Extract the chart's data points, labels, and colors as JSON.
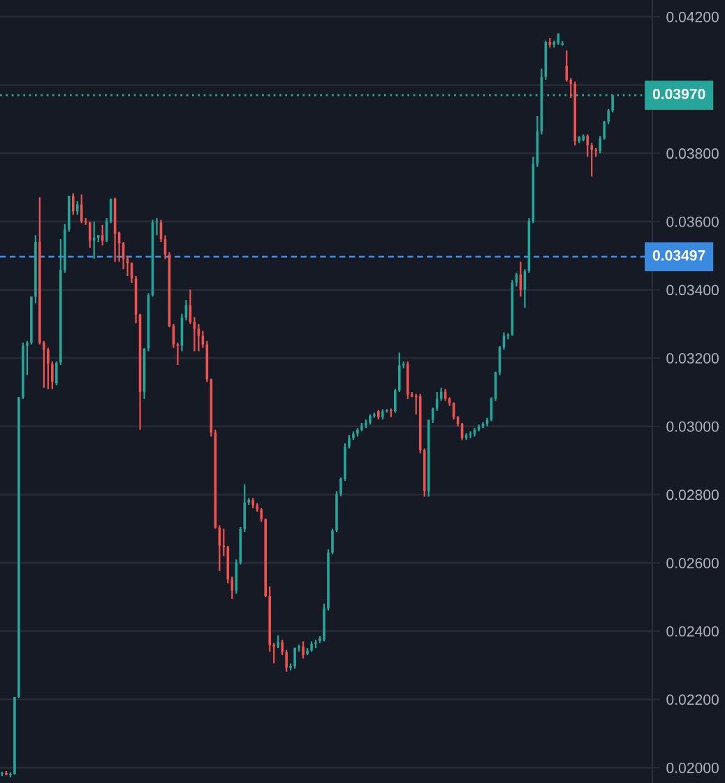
{
  "chart_data": {
    "type": "candlestick",
    "categories": [
      null,
      null,
      null,
      null,
      null,
      null,
      null,
      null,
      null,
      null,
      null,
      null,
      null,
      null,
      null,
      null,
      null,
      null,
      null,
      null,
      null,
      null,
      null,
      null,
      null,
      null,
      null,
      null,
      null,
      null,
      null,
      null,
      null,
      null,
      null,
      null,
      null,
      null,
      null,
      null,
      null,
      null,
      null,
      null,
      null,
      null,
      null,
      null,
      null,
      null,
      null,
      null,
      null,
      null,
      null,
      null,
      null,
      null,
      null,
      null,
      null,
      null,
      null,
      null,
      null,
      null,
      null,
      null,
      null,
      null,
      null,
      null,
      null,
      null,
      null,
      null,
      null,
      null,
      null,
      null,
      null,
      null,
      null,
      null,
      null,
      null,
      null,
      null,
      null,
      null,
      null,
      null,
      null,
      null,
      null,
      null,
      null,
      null,
      null,
      null,
      null,
      null,
      null,
      null,
      null,
      null,
      null,
      null,
      null,
      null,
      null,
      null,
      null,
      null,
      null,
      null,
      null,
      null,
      null,
      null,
      null,
      null,
      null,
      null,
      null,
      null,
      null,
      null,
      null,
      null,
      null,
      null,
      null,
      null,
      null,
      null,
      null,
      null,
      null,
      null,
      null,
      null,
      null,
      null,
      null,
      null,
      null,
      null,
      null,
      null,
      null,
      null,
      null,
      null,
      null,
      null
    ],
    "ohlc": [
      [
        0.01982,
        0.01988,
        0.01975,
        0.01984
      ],
      [
        0.01984,
        0.0199,
        0.01978,
        0.01978
      ],
      [
        0.01978,
        0.01986,
        0.01972,
        0.01982
      ],
      [
        0.01982,
        0.02207,
        0.0198,
        0.02207
      ],
      [
        0.02207,
        0.03085,
        0.02205,
        0.03085
      ],
      [
        0.03085,
        0.03245,
        0.0308,
        0.03236
      ],
      [
        0.03236,
        0.0325,
        0.0315,
        0.03245
      ],
      [
        0.03245,
        0.0338,
        0.0324,
        0.0338
      ],
      [
        0.0338,
        0.0356,
        0.0336,
        0.0354
      ],
      [
        0.0354,
        0.03671,
        0.0324,
        0.03245
      ],
      [
        0.03245,
        0.0325,
        0.03113,
        0.03224
      ],
      [
        0.03224,
        0.0323,
        0.03109,
        0.03183
      ],
      [
        0.03183,
        0.0319,
        0.03109,
        0.0313
      ],
      [
        0.03126,
        0.0319,
        0.0312,
        0.03187
      ],
      [
        0.03187,
        0.03548,
        0.0318,
        0.03458
      ],
      [
        0.03458,
        0.03593,
        0.0345,
        0.03577
      ],
      [
        0.03577,
        0.03675,
        0.0357,
        0.03675
      ],
      [
        0.03675,
        0.03683,
        0.0362,
        0.0363
      ],
      [
        0.0363,
        0.0366,
        0.0362,
        0.0365
      ],
      [
        0.0365,
        0.03679,
        0.03595,
        0.03601
      ],
      [
        0.03601,
        0.0361,
        0.0359,
        0.03597
      ],
      [
        0.03597,
        0.036,
        0.03523,
        0.03544
      ],
      [
        0.03544,
        0.036,
        0.03491,
        0.03552
      ],
      [
        0.03552,
        0.0356,
        0.0354,
        0.0356
      ],
      [
        0.0356,
        0.0359,
        0.0353,
        0.03544
      ],
      [
        0.03544,
        0.0361,
        0.0354,
        0.03601
      ],
      [
        0.03601,
        0.03667,
        0.03595,
        0.03667
      ],
      [
        0.03667,
        0.0367,
        0.03482,
        0.03564
      ],
      [
        0.03568,
        0.0357,
        0.03482,
        0.03536
      ],
      [
        0.03536,
        0.0354,
        0.0346,
        0.03491
      ],
      [
        0.03491,
        0.035,
        0.0344,
        0.03478
      ],
      [
        0.03478,
        0.0348,
        0.0342,
        0.03433
      ],
      [
        0.03433,
        0.0344,
        0.03302,
        0.03327
      ],
      [
        0.03327,
        0.0333,
        0.0299,
        0.03101
      ],
      [
        0.03101,
        0.03228,
        0.0308,
        0.03228
      ],
      [
        0.03228,
        0.0339,
        0.0322,
        0.03384
      ],
      [
        0.03384,
        0.03605,
        0.0338,
        0.03597
      ],
      [
        0.03597,
        0.0361,
        0.0356,
        0.03601
      ],
      [
        0.03597,
        0.03605,
        0.0354,
        0.03548
      ],
      [
        0.03548,
        0.0356,
        0.0349,
        0.03503
      ],
      [
        0.03503,
        0.0351,
        0.0329,
        0.03294
      ],
      [
        0.03294,
        0.033,
        0.0323,
        0.0324
      ],
      [
        0.0324,
        0.03245,
        0.0318,
        0.03236
      ],
      [
        0.03236,
        0.0333,
        0.0322,
        0.03318
      ],
      [
        0.03318,
        0.0337,
        0.0331,
        0.03355
      ],
      [
        0.03355,
        0.034,
        0.033,
        0.03306
      ],
      [
        0.03306,
        0.0332,
        0.0322,
        0.03286
      ],
      [
        0.03286,
        0.033,
        0.0322,
        0.03265
      ],
      [
        0.03265,
        0.0328,
        0.0323,
        0.0324
      ],
      [
        0.0324,
        0.0325,
        0.0313,
        0.03138
      ],
      [
        0.03138,
        0.0314,
        0.0297,
        0.02982
      ],
      [
        0.02982,
        0.0299,
        0.027,
        0.02703
      ],
      [
        0.02703,
        0.0271,
        0.02576,
        0.0265
      ],
      [
        0.0265,
        0.027,
        0.0262,
        0.02646
      ],
      [
        0.02646,
        0.0265,
        0.0254,
        0.02552
      ],
      [
        0.02552,
        0.0256,
        0.02494,
        0.02519
      ],
      [
        0.02519,
        0.0261,
        0.0251,
        0.02601
      ],
      [
        0.02601,
        0.02705,
        0.02595,
        0.02699
      ],
      [
        0.02699,
        0.0283,
        0.0269,
        0.02777
      ],
      [
        0.02777,
        0.0279,
        0.0277,
        0.02785
      ],
      [
        0.02785,
        0.0279,
        0.0276,
        0.02769
      ],
      [
        0.02769,
        0.02775,
        0.0275,
        0.02757
      ],
      [
        0.02757,
        0.0276,
        0.0272,
        0.02728
      ],
      [
        0.02728,
        0.0273,
        0.025,
        0.02502
      ],
      [
        0.02502,
        0.02531,
        0.0234,
        0.02359
      ],
      [
        0.02359,
        0.02365,
        0.02306,
        0.02355
      ],
      [
        0.02355,
        0.02388,
        0.0235,
        0.02367
      ],
      [
        0.02367,
        0.02375,
        0.0233,
        0.02338
      ],
      [
        0.02338,
        0.02345,
        0.02281,
        0.02293
      ],
      [
        0.02293,
        0.02305,
        0.02285,
        0.02297
      ],
      [
        0.02297,
        0.02351,
        0.0229,
        0.02351
      ],
      [
        0.02351,
        0.0236,
        0.0234,
        0.02355
      ],
      [
        0.02355,
        0.0237,
        0.0232,
        0.0233
      ],
      [
        0.02334,
        0.0235,
        0.0233,
        0.02343
      ],
      [
        0.02343,
        0.0237,
        0.0234,
        0.02363
      ],
      [
        0.02363,
        0.02375,
        0.0235,
        0.02367
      ],
      [
        0.02371,
        0.02385,
        0.02365,
        0.02379
      ],
      [
        0.02375,
        0.0248,
        0.0237,
        0.02466
      ],
      [
        0.02466,
        0.0264,
        0.0246,
        0.0263
      ],
      [
        0.0263,
        0.027,
        0.02625,
        0.02695
      ],
      [
        0.02695,
        0.0281,
        0.0269,
        0.02802
      ],
      [
        0.02802,
        0.0285,
        0.02795,
        0.02847
      ],
      [
        0.02847,
        0.0295,
        0.0284,
        0.02941
      ],
      [
        0.02941,
        0.02975,
        0.02935,
        0.02966
      ],
      [
        0.02966,
        0.02985,
        0.0296,
        0.02978
      ],
      [
        0.02978,
        0.02995,
        0.0297,
        0.0299
      ],
      [
        0.0299,
        0.0301,
        0.02985,
        0.03003
      ],
      [
        0.03003,
        0.0302,
        0.02995,
        0.03011
      ],
      [
        0.03011,
        0.03035,
        0.03005,
        0.03031
      ],
      [
        0.03031,
        0.0304,
        0.03025,
        0.03035
      ],
      [
        0.03044,
        0.03048,
        0.0302,
        0.03027
      ],
      [
        0.03027,
        0.0305,
        0.0302,
        0.03044
      ],
      [
        0.03044,
        0.0305,
        0.0304,
        0.03048
      ],
      [
        0.03048,
        0.03052,
        0.03027,
        0.03044
      ],
      [
        0.03044,
        0.0311,
        0.0304,
        0.03105
      ],
      [
        0.03105,
        0.03216,
        0.031,
        0.03179
      ],
      [
        0.03179,
        0.0319,
        0.0317,
        0.03183
      ],
      [
        0.03183,
        0.0319,
        0.0308,
        0.03093
      ],
      [
        0.03093,
        0.031,
        0.03085,
        0.03089
      ],
      [
        0.03089,
        0.03095,
        0.03035,
        0.03085
      ],
      [
        0.03089,
        0.03095,
        0.02921,
        0.0293
      ],
      [
        0.0293,
        0.02935,
        0.02794,
        0.0281
      ],
      [
        0.0281,
        0.03019,
        0.02794,
        0.03019
      ],
      [
        0.03019,
        0.03055,
        0.0301,
        0.03052
      ],
      [
        0.03052,
        0.031,
        0.03045,
        0.03081
      ],
      [
        0.03081,
        0.03113,
        0.03075,
        0.03101
      ],
      [
        0.03101,
        0.0311,
        0.03075,
        0.03081
      ],
      [
        0.03081,
        0.03085,
        0.0306,
        0.03068
      ],
      [
        0.03068,
        0.0307,
        0.0302,
        0.03027
      ],
      [
        0.03027,
        0.0303,
        0.03,
        0.03007
      ],
      [
        0.03007,
        0.0301,
        0.0296,
        0.02966
      ],
      [
        0.02966,
        0.0298,
        0.0296,
        0.02974
      ],
      [
        0.02974,
        0.02985,
        0.02965,
        0.02978
      ],
      [
        0.02978,
        0.02995,
        0.0297,
        0.0299
      ],
      [
        0.0299,
        0.03005,
        0.02985,
        0.02999
      ],
      [
        0.02999,
        0.03012,
        0.02995,
        0.03007
      ],
      [
        0.03007,
        0.03025,
        0.03,
        0.03019
      ],
      [
        0.03019,
        0.03085,
        0.03015,
        0.03081
      ],
      [
        0.03081,
        0.0316,
        0.03075,
        0.03158
      ],
      [
        0.03158,
        0.03235,
        0.0315,
        0.03232
      ],
      [
        0.03232,
        0.03275,
        0.03225,
        0.03265
      ],
      [
        0.03265,
        0.03272,
        0.03255,
        0.03269
      ],
      [
        0.03269,
        0.03429,
        0.03265,
        0.03421
      ],
      [
        0.03421,
        0.0345,
        0.0341,
        0.03445
      ],
      [
        0.03445,
        0.03482,
        0.0338,
        0.034
      ],
      [
        0.034,
        0.0346,
        0.03347,
        0.03454
      ],
      [
        0.03454,
        0.0361,
        0.0345,
        0.03601
      ],
      [
        0.03601,
        0.0379,
        0.03595,
        0.03769
      ],
      [
        0.03769,
        0.03909,
        0.0376,
        0.03864
      ],
      [
        0.03864,
        0.04048,
        0.03855,
        0.04024
      ],
      [
        0.04024,
        0.0413,
        0.04015,
        0.04126
      ],
      [
        0.04126,
        0.04138,
        0.0411,
        0.04118
      ],
      [
        0.04118,
        0.0413,
        0.0411,
        0.04126
      ],
      [
        0.04122,
        0.04151,
        0.04118,
        0.04151
      ],
      [
        0.04118,
        0.04128,
        0.04115,
        0.04122
      ],
      [
        0.04056,
        0.04101,
        0.0401,
        0.04015
      ],
      [
        0.04015,
        0.0402,
        0.03962,
        0.04003
      ],
      [
        0.04003,
        0.0401,
        0.03823,
        0.03835
      ],
      [
        0.03835,
        0.0385,
        0.0383,
        0.03847
      ],
      [
        0.03839,
        0.03855,
        0.03835,
        0.03851
      ],
      [
        0.03851,
        0.03855,
        0.0379,
        0.03823
      ],
      [
        0.03823,
        0.0383,
        0.03732,
        0.0381
      ],
      [
        0.0381,
        0.03815,
        0.0379,
        0.03806
      ],
      [
        0.03806,
        0.0385,
        0.038,
        0.03843
      ],
      [
        0.03843,
        0.03895,
        0.0384,
        0.03892
      ],
      [
        0.03892,
        0.0393,
        0.03885,
        0.03925
      ],
      [
        0.03925,
        0.03972,
        0.0392,
        0.0397
      ],
      null,
      null,
      null,
      null,
      null,
      null,
      null,
      null,
      null
    ],
    "ylim": [
      0.01955,
      0.04249
    ],
    "yticks": [
      {
        "value": 0.02,
        "label": "0.02000"
      },
      {
        "value": 0.022,
        "label": "0.02200"
      },
      {
        "value": 0.024,
        "label": "0.02400"
      },
      {
        "value": 0.026,
        "label": "0.02600"
      },
      {
        "value": 0.028,
        "label": "0.02800"
      },
      {
        "value": 0.03,
        "label": "0.03000"
      },
      {
        "value": 0.032,
        "label": "0.03200"
      },
      {
        "value": 0.034,
        "label": "0.03400"
      },
      {
        "value": 0.036,
        "label": "0.03600"
      },
      {
        "value": 0.038,
        "label": "0.03800"
      },
      {
        "value": 0.04,
        "label": null
      },
      {
        "value": 0.042,
        "label": "0.04200"
      }
    ],
    "ref_lines": [
      {
        "axis": "y",
        "value": 0.0397,
        "label": "0.03970",
        "color": "#26a69a",
        "line_style": "dotted"
      },
      {
        "axis": "y",
        "value": 0.03497,
        "label": "0.03497",
        "color": "#3a8be0",
        "line_style": "dashed"
      }
    ],
    "grid": "y",
    "tick_labels": "y"
  }
}
